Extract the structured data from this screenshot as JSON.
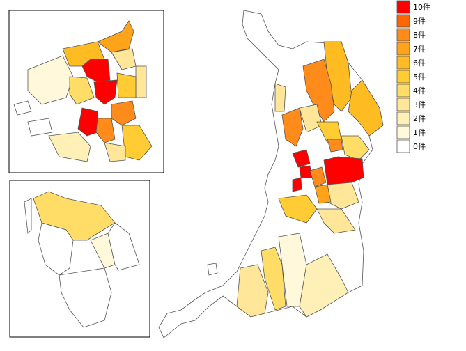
{
  "legend": {
    "items": [
      {
        "label": "10件",
        "color": "#ff0000"
      },
      {
        "label": "9件",
        "color": "#ff6600"
      },
      {
        "label": "8件",
        "color": "#ff8c1a"
      },
      {
        "label": "7件",
        "color": "#ffa31a"
      },
      {
        "label": "6件",
        "color": "#ffbb22"
      },
      {
        "label": "5件",
        "color": "#ffcc33"
      },
      {
        "label": "4件",
        "color": "#ffdd66"
      },
      {
        "label": "3件",
        "color": "#ffe699"
      },
      {
        "label": "2件",
        "color": "#fff0b8"
      },
      {
        "label": "1件",
        "color": "#fff8da"
      },
      {
        "label": "0件",
        "color": "#ffffff"
      }
    ]
  }
}
